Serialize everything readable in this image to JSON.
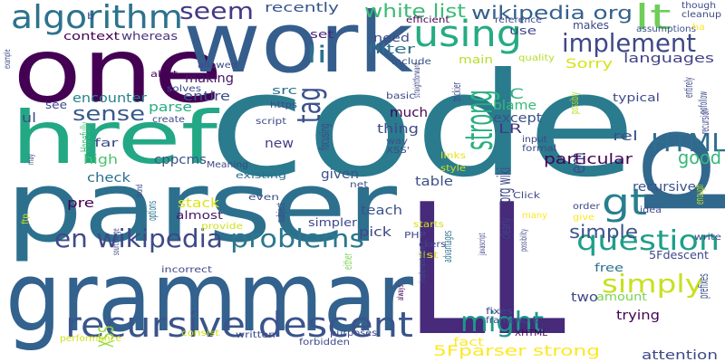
{
  "words": [
    {
      "text": "code",
      "color": "#2a7b8e",
      "vertical": false
    },
    {
      "text": "parser",
      "color": "#2d708e",
      "vertical": false
    },
    {
      "text": "grammar",
      "color": "#32628d",
      "vertical": false
    },
    {
      "text": "one",
      "color": "#440154",
      "vertical": false
    },
    {
      "text": "work",
      "color": "#355e8d",
      "vertical": false
    },
    {
      "text": "href",
      "color": "#22a884",
      "vertical": false
    },
    {
      "text": "LL",
      "color": "#472a7a",
      "vertical": false
    },
    {
      "text": "p",
      "color": "#31688e",
      "vertical": true
    },
    {
      "text": "recursive descent",
      "color": "#3a548c",
      "vertical": false
    },
    {
      "text": "algorithm",
      "color": "#2c728e",
      "vertical": false
    },
    {
      "text": "using",
      "color": "#25ab82",
      "vertical": false
    },
    {
      "text": "implement",
      "color": "#3f4788",
      "vertical": false
    },
    {
      "text": "lt",
      "color": "#6ece58",
      "vertical": false
    },
    {
      "text": "question",
      "color": "#1f9e89",
      "vertical": false
    },
    {
      "text": "en wikipedia",
      "color": "#3e4a89",
      "vertical": false
    },
    {
      "text": "problems",
      "color": "#2a788e",
      "vertical": false
    },
    {
      "text": "strong",
      "color": "#29af7f",
      "vertical": true
    },
    {
      "text": "tag",
      "color": "#3b528b",
      "vertical": true
    },
    {
      "text": "HTML",
      "color": "#2e6e8e",
      "vertical": false
    },
    {
      "text": "gt",
      "color": "#277f8e",
      "vertical": false
    },
    {
      "text": "might",
      "color": "#1f988b",
      "vertical": false
    },
    {
      "text": "simply",
      "color": "#c8e020",
      "vertical": false
    },
    {
      "text": "wikipedia org",
      "color": "#34618d",
      "vertical": false
    },
    {
      "text": "seem",
      "color": "#443983",
      "vertical": false
    },
    {
      "text": "white list",
      "color": "#3bbb75",
      "vertical": false
    },
    {
      "text": "li",
      "color": "#2c728e",
      "vertical": false
    },
    {
      "text": "sense",
      "color": "#38598c",
      "vertical": false
    },
    {
      "text": "org wiki",
      "color": "#3f4889",
      "vertical": true
    },
    {
      "text": "em",
      "color": "#3b518b",
      "vertical": true
    },
    {
      "text": "XSS",
      "color": "#95d840",
      "vertical": true
    },
    {
      "text": "simple",
      "color": "#3b528b",
      "vertical": false
    },
    {
      "text": "5Fparser strong",
      "color": "#fde725",
      "vertical": false
    },
    {
      "text": "good",
      "color": "#35b779",
      "vertical": false
    },
    {
      "text": "C",
      "color": "#2db27d",
      "vertical": false
    },
    {
      "text": "recently",
      "color": "#39568c",
      "vertical": false
    },
    {
      "text": "filter",
      "color": "#2d708e",
      "vertical": false
    },
    {
      "text": "main",
      "color": "#b5de2b",
      "vertical": false
    },
    {
      "text": "languages",
      "color": "#414487",
      "vertical": false
    },
    {
      "text": "Sorry",
      "color": "#d8e219",
      "vertical": false
    },
    {
      "text": "need",
      "color": "#3e4989",
      "vertical": false
    },
    {
      "text": "set",
      "color": "#482475",
      "vertical": false
    },
    {
      "text": "use",
      "color": "#3f4788",
      "vertical": false
    },
    {
      "text": "context",
      "color": "#440154",
      "vertical": false
    },
    {
      "text": "whereas",
      "color": "#46327e",
      "vertical": false
    },
    {
      "text": "making",
      "color": "#471365",
      "vertical": false
    },
    {
      "text": "entire",
      "color": "#3d4d8a",
      "vertical": false
    },
    {
      "text": "encounter",
      "color": "#26828e",
      "vertical": false
    },
    {
      "text": "Hopefully",
      "color": "#3dbc74",
      "vertical": true
    },
    {
      "text": "parse",
      "color": "#26ad81",
      "vertical": false
    },
    {
      "text": "cppcms",
      "color": "#3b528b",
      "vertical": false
    },
    {
      "text": "high",
      "color": "#4ac16d",
      "vertical": false
    },
    {
      "text": "far",
      "color": "#3e4989",
      "vertical": false
    },
    {
      "text": "check",
      "color": "#2d708e",
      "vertical": false
    },
    {
      "text": "options",
      "color": "#2c718e",
      "vertical": true
    },
    {
      "text": "pre",
      "color": "#440154",
      "vertical": false
    },
    {
      "text": "stack",
      "color": "#dde318",
      "vertical": false
    },
    {
      "text": "almost",
      "color": "#48186a",
      "vertical": false
    },
    {
      "text": "even",
      "color": "#3e4a89",
      "vertical": false
    },
    {
      "text": "focusing",
      "color": "#3f4788",
      "vertical": true
    },
    {
      "text": "new",
      "color": "#433e85",
      "vertical": false
    },
    {
      "text": "src",
      "color": "#2c728e",
      "vertical": false
    },
    {
      "text": "existing",
      "color": "#2d708e",
      "vertical": false
    },
    {
      "text": "given",
      "color": "#3b528b",
      "vertical": false
    },
    {
      "text": "subject",
      "color": "#3e4989",
      "vertical": true
    },
    {
      "text": "simpler",
      "color": "#3f4788",
      "vertical": false
    },
    {
      "text": "teach",
      "color": "#3b528b",
      "vertical": false
    },
    {
      "text": "pick",
      "color": "#3f4788",
      "vertical": false
    },
    {
      "text": "either",
      "color": "#7ad151",
      "vertical": true
    },
    {
      "text": "much",
      "color": "#440154",
      "vertical": false
    },
    {
      "text": "thing",
      "color": "#3e4989",
      "vertical": false
    },
    {
      "text": "LR",
      "color": "#453781",
      "vertical": false
    },
    {
      "text": "blame",
      "color": "#38b977",
      "vertical": false
    },
    {
      "text": "except",
      "color": "#3b528b",
      "vertical": false
    },
    {
      "text": "clearly",
      "color": "#3f4788",
      "vertical": true
    },
    {
      "text": "trickier",
      "color": "#3e4989",
      "vertical": true
    },
    {
      "text": "advantages",
      "color": "#2c728e",
      "vertical": true
    },
    {
      "text": "particular",
      "color": "#440154",
      "vertical": false
    },
    {
      "text": "table",
      "color": "#3b528b",
      "vertical": false
    },
    {
      "text": "recursive",
      "color": "#3b528b",
      "vertical": false
    },
    {
      "text": "free",
      "color": "#2d708e",
      "vertical": false
    },
    {
      "text": "5Fdescent",
      "color": "#3f4788",
      "vertical": false
    },
    {
      "text": "two",
      "color": "#3e4989",
      "vertical": false
    },
    {
      "text": "amount",
      "color": "#7ad151",
      "vertical": false
    },
    {
      "text": "trying",
      "color": "#440154",
      "vertical": false
    },
    {
      "text": "fact",
      "color": "#fde725",
      "vertical": false
    },
    {
      "text": "attention",
      "color": "#3e4989",
      "vertical": false
    },
    {
      "text": "prefixes",
      "color": "#3b528b",
      "vertical": true
    },
    {
      "text": "enough",
      "color": "#c2df23",
      "vertical": true
    },
    {
      "text": "entirely",
      "color": "#3e4989",
      "vertical": true
    },
    {
      "text": "nofollow",
      "color": "#3b528b",
      "vertical": true
    },
    {
      "text": "recursion",
      "color": "#3f4788",
      "vertical": true
    },
    {
      "text": "rel",
      "color": "#3b528b",
      "vertical": false
    },
    {
      "text": "possibly",
      "color": "#b5de2b",
      "vertical": true
    },
    {
      "text": "typical",
      "color": "#3e4989",
      "vertical": false
    },
    {
      "text": "makes",
      "color": "#3e4989",
      "vertical": false
    },
    {
      "text": "quality",
      "color": "#b5de2b",
      "vertical": false
    },
    {
      "text": "include",
      "color": "#3b528b",
      "vertical": false
    },
    {
      "text": "efficient",
      "color": "#440154",
      "vertical": false
    },
    {
      "text": "reference",
      "color": "#3e4989",
      "vertical": false
    },
    {
      "text": "assumptions",
      "color": "#3b528b",
      "vertical": false
    },
    {
      "text": "ha",
      "color": "#fde725",
      "vertical": false
    },
    {
      "text": "though",
      "color": "#3e4989",
      "vertical": false
    },
    {
      "text": "cleanup",
      "color": "#3f4788",
      "vertical": false
    },
    {
      "text": "basic",
      "color": "#3e4989",
      "vertical": false
    },
    {
      "text": "straightforward",
      "color": "#3e4989",
      "vertical": true
    },
    {
      "text": "way",
      "color": "#3b528b",
      "vertical": false
    },
    {
      "text": "XSS'",
      "color": "#3e4989",
      "vertical": false
    },
    {
      "text": "links",
      "color": "#e5e419",
      "vertical": false
    },
    {
      "text": "style",
      "color": "#d0e11c",
      "vertical": false
    },
    {
      "text": "input",
      "color": "#3e4989",
      "vertical": false
    },
    {
      "text": "formal",
      "color": "#3e4989",
      "vertical": false
    },
    {
      "text": "net",
      "color": "#3b528b",
      "vertical": false
    },
    {
      "text": "Click",
      "color": "#3e4989",
      "vertical": false
    },
    {
      "text": "order",
      "color": "#3e4989",
      "vertical": false
    },
    {
      "text": "give",
      "color": "#fde725",
      "vertical": false
    },
    {
      "text": "idea",
      "color": "#3e4989",
      "vertical": false
    },
    {
      "text": "many",
      "color": "#fde725",
      "vertical": false
    },
    {
      "text": "write",
      "color": "#3e4989",
      "vertical": false
    },
    {
      "text": "PHP",
      "color": "#3e4989",
      "vertical": false
    },
    {
      "text": "starts",
      "color": "#d0e11c",
      "vertical": false
    },
    {
      "text": "javascript",
      "color": "#3f4788",
      "vertical": true
    },
    {
      "text": "ckers",
      "color": "#3e4989",
      "vertical": false
    },
    {
      "text": "list",
      "color": "#d8e219",
      "vertical": false
    },
    {
      "text": "possibility",
      "color": "#3e4989",
      "vertical": true
    },
    {
      "text": "fixes",
      "color": "#3e4989",
      "vertical": false
    },
    {
      "text": "implementation",
      "color": "#3b528b",
      "vertical": true
    },
    {
      "text": "framework",
      "color": "#3e4989",
      "vertical": false
    },
    {
      "text": "XHTML",
      "color": "#440154",
      "vertical": false
    },
    {
      "text": "always",
      "color": "#440154",
      "vertical": true
    },
    {
      "text": "purposes",
      "color": "#3e4989",
      "vertical": false
    },
    {
      "text": "forbidden",
      "color": "#3e4989",
      "vertical": false
    },
    {
      "text": "written",
      "color": "#3e4989",
      "vertical": false
    },
    {
      "text": "consist",
      "color": "#d0e11c",
      "vertical": false
    },
    {
      "text": "performance",
      "color": "#d0e11c",
      "vertical": false
    },
    {
      "text": "sourceforge",
      "color": "#3e4989",
      "vertical": true
    },
    {
      "text": "incorrect",
      "color": "#3e4989",
      "vertical": false
    },
    {
      "text": "provide",
      "color": "#d0e11c",
      "vertical": false
    },
    {
      "text": "found",
      "color": "#3e4989",
      "vertical": true
    },
    {
      "text": "Meaning",
      "color": "#3e4989",
      "vertical": false
    },
    {
      "text": "https",
      "color": "#3e4989",
      "vertical": false
    },
    {
      "text": "script",
      "color": "#3e4989",
      "vertical": false
    },
    {
      "text": "create",
      "color": "#3e4989",
      "vertical": false
    },
    {
      "text": "solves",
      "color": "#3e4989",
      "vertical": false
    },
    {
      "text": "allowed",
      "color": "#3e4989",
      "vertical": false
    },
    {
      "text": "alert",
      "color": "#440154",
      "vertical": false
    },
    {
      "text": "b",
      "color": "#3e4989",
      "vertical": false
    },
    {
      "text": "ul",
      "color": "#3e4989",
      "vertical": false
    },
    {
      "text": "see",
      "color": "#3e4989",
      "vertical": false
    },
    {
      "text": "example",
      "color": "#3e4989",
      "vertical": true
    },
    {
      "text": "may",
      "color": "#3e4989",
      "vertical": true
    },
    {
      "text": "ftp",
      "color": "#d0e11c",
      "vertical": true
    }
  ]
}
